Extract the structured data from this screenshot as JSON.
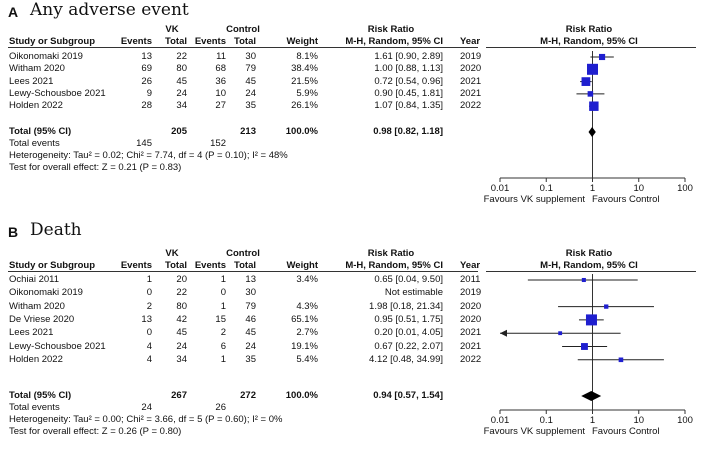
{
  "chart_data": [
    {
      "type": "forest",
      "panel_letter": "A",
      "title": "Any adverse event",
      "headers": {
        "group1": "VK",
        "group2": "Control",
        "study": "Study or Subgroup",
        "events": "Events",
        "total": "Total",
        "weight": "Weight",
        "effect_group": "Risk Ratio",
        "effect_method": "M-H, Random, 95% CI",
        "year": "Year",
        "plot_group": "Risk Ratio",
        "plot_method": "M-H, Random, 95% CI"
      },
      "studies": [
        {
          "name": "Oikonomaki 2019",
          "e1": "13",
          "n1": "22",
          "e2": "11",
          "n2": "30",
          "weight": "8.1%",
          "rr_text": "1.61 [0.90, 2.89]",
          "year": "2019",
          "rr": 1.61,
          "lo": 0.9,
          "hi": 2.89,
          "w": 8.1
        },
        {
          "name": "Witham 2020",
          "e1": "69",
          "n1": "80",
          "e2": "68",
          "n2": "79",
          "weight": "38.4%",
          "rr_text": "1.00 [0.88, 1.13]",
          "year": "2020",
          "rr": 1.0,
          "lo": 0.88,
          "hi": 1.13,
          "w": 38.4
        },
        {
          "name": "Lees 2021",
          "e1": "26",
          "n1": "45",
          "e2": "36",
          "n2": "45",
          "weight": "21.5%",
          "rr_text": "0.72 [0.54, 0.96]",
          "year": "2021",
          "rr": 0.72,
          "lo": 0.54,
          "hi": 0.96,
          "w": 21.5
        },
        {
          "name": "Lewy-Schousboe 2021",
          "e1": "9",
          "n1": "24",
          "e2": "10",
          "n2": "24",
          "weight": "5.9%",
          "rr_text": "0.90 [0.45, 1.81]",
          "year": "2021",
          "rr": 0.9,
          "lo": 0.45,
          "hi": 1.81,
          "w": 5.9
        },
        {
          "name": "Holden 2022",
          "e1": "28",
          "n1": "34",
          "e2": "27",
          "n2": "35",
          "weight": "26.1%",
          "rr_text": "1.07 [0.84, 1.35]",
          "year": "2022",
          "rr": 1.07,
          "lo": 0.84,
          "hi": 1.35,
          "w": 26.1
        }
      ],
      "total": {
        "label": "Total (95% CI)",
        "n1": "205",
        "n2": "213",
        "weight": "100.0%",
        "rr_text": "0.98 [0.82, 1.18]",
        "rr": 0.98,
        "lo": 0.82,
        "hi": 1.18
      },
      "total_events": {
        "label": "Total events",
        "e1": "145",
        "e2": "152"
      },
      "heterogeneity": "Heterogeneity: Tau² = 0.02; Chi² = 7.74, df = 4 (P = 0.10); I² = 48%",
      "overall_test": "Test for overall effect: Z = 0.21 (P = 0.83)",
      "axis": {
        "scale": "log",
        "ticks": [
          0.01,
          0.1,
          1,
          10,
          100
        ],
        "tick_labels": [
          "0.01",
          "0.1",
          "1",
          "10",
          "100"
        ],
        "range": [
          0.01,
          100
        ]
      },
      "favours_left": "Favours VK supplement",
      "favours_right": "Favours Control"
    },
    {
      "type": "forest",
      "panel_letter": "B",
      "title": "Death",
      "headers": {
        "group1": "VK",
        "group2": "Control",
        "study": "Study or Subgroup",
        "events": "Events",
        "total": "Total",
        "weight": "Weight",
        "effect_group": "Risk Ratio",
        "effect_method": "M-H, Random, 95% CI",
        "year": "Year",
        "plot_group": "Risk Ratio",
        "plot_method": "M-H, Random, 95% CI"
      },
      "studies": [
        {
          "name": "Ochiai 2011",
          "e1": "1",
          "n1": "20",
          "e2": "1",
          "n2": "13",
          "weight": "3.4%",
          "rr_text": "0.65 [0.04, 9.50]",
          "year": "2011",
          "rr": 0.65,
          "lo": 0.04,
          "hi": 9.5,
          "w": 3.4
        },
        {
          "name": "Oikonomaki 2019",
          "e1": "0",
          "n1": "22",
          "e2": "0",
          "n2": "30",
          "weight": "",
          "rr_text": "Not estimable",
          "year": "2019",
          "rr": null,
          "lo": null,
          "hi": null,
          "w": 0
        },
        {
          "name": "Witham 2020",
          "e1": "2",
          "n1": "80",
          "e2": "1",
          "n2": "79",
          "weight": "4.3%",
          "rr_text": "1.98 [0.18, 21.34]",
          "year": "2020",
          "rr": 1.98,
          "lo": 0.18,
          "hi": 21.34,
          "w": 4.3
        },
        {
          "name": "De Vriese 2020",
          "e1": "13",
          "n1": "42",
          "e2": "15",
          "n2": "46",
          "weight": "65.1%",
          "rr_text": "0.95 [0.51, 1.75]",
          "year": "2020",
          "rr": 0.95,
          "lo": 0.51,
          "hi": 1.75,
          "w": 65.1
        },
        {
          "name": "Lees 2021",
          "e1": "0",
          "n1": "45",
          "e2": "2",
          "n2": "45",
          "weight": "2.7%",
          "rr_text": "0.20 [0.01, 4.05]",
          "year": "2021",
          "rr": 0.2,
          "lo": 0.01,
          "hi": 4.05,
          "w": 2.7
        },
        {
          "name": "Lewy-Schousboe 2021",
          "e1": "4",
          "n1": "24",
          "e2": "6",
          "n2": "24",
          "weight": "19.1%",
          "rr_text": "0.67 [0.22, 2.07]",
          "year": "2021",
          "rr": 0.67,
          "lo": 0.22,
          "hi": 2.07,
          "w": 19.1
        },
        {
          "name": "Holden 2022",
          "e1": "4",
          "n1": "34",
          "e2": "1",
          "n2": "35",
          "weight": "5.4%",
          "rr_text": "4.12 [0.48, 34.99]",
          "year": "2022",
          "rr": 4.12,
          "lo": 0.48,
          "hi": 34.99,
          "w": 5.4
        }
      ],
      "total": {
        "label": "Total (95% CI)",
        "n1": "267",
        "n2": "272",
        "weight": "100.0%",
        "rr_text": "0.94 [0.57, 1.54]",
        "rr": 0.94,
        "lo": 0.57,
        "hi": 1.54
      },
      "total_events": {
        "label": "Total events",
        "e1": "24",
        "e2": "26"
      },
      "heterogeneity": "Heterogeneity: Tau² = 0.00; Chi² = 3.66, df = 5 (P = 0.60); I² = 0%",
      "overall_test": "Test for overall effect: Z = 0.26 (P = 0.80)",
      "axis": {
        "scale": "log",
        "ticks": [
          0.01,
          0.1,
          1,
          10,
          100
        ],
        "tick_labels": [
          "0.01",
          "0.1",
          "1",
          "10",
          "100"
        ],
        "range": [
          0.01,
          100
        ]
      },
      "favours_left": "Favours VK supplement",
      "favours_right": "Favours Control"
    }
  ],
  "colors": {
    "square": "#1f1fcf",
    "line": "#222222",
    "diamond": "#000000"
  }
}
